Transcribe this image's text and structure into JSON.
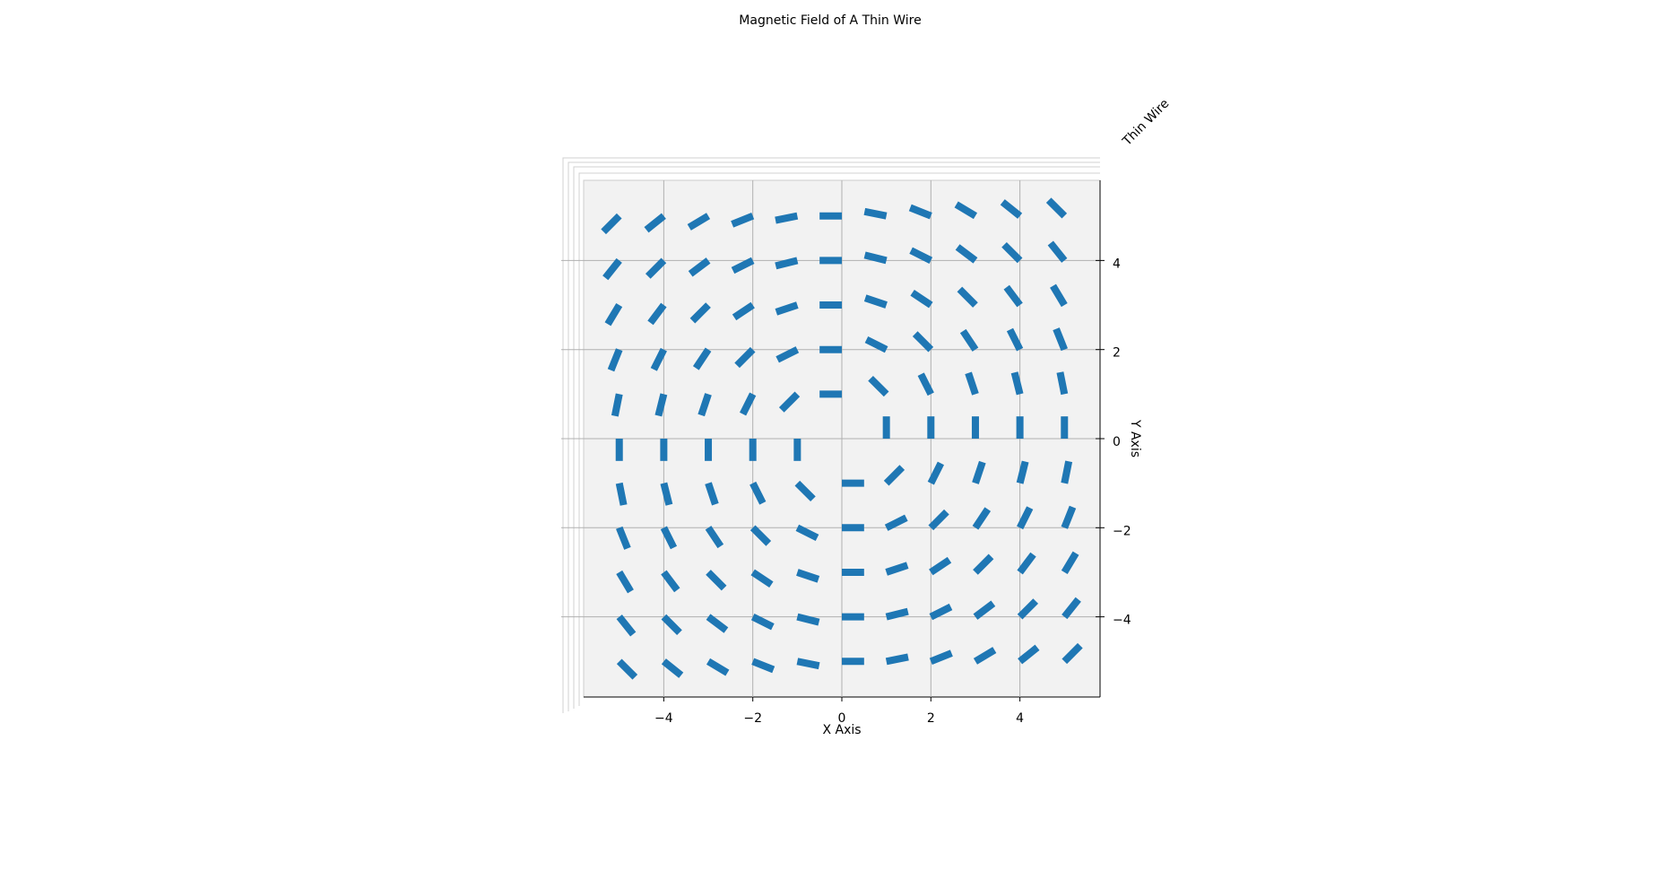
{
  "chart_data": {
    "type": "quiver",
    "title": "Magnetic Field of A Thin Wire",
    "x_label": "X Axis",
    "y_label": "Y Axis",
    "z_label": "Thin Wire",
    "color": "#1f77b4",
    "grid": true,
    "xlim": [
      -5.8,
      5.8
    ],
    "ylim": [
      -5.8,
      5.8
    ],
    "xticks": [
      {
        "value": -4,
        "label": "−4"
      },
      {
        "value": -2,
        "label": "−2"
      },
      0,
      2,
      4
    ],
    "yticks": [
      {
        "value": -4,
        "label": "−4"
      },
      {
        "value": -2,
        "label": "−2"
      },
      0,
      2,
      4
    ],
    "x": [
      -5,
      -4,
      -3,
      -2,
      -1,
      0,
      1,
      2,
      3,
      4,
      5
    ],
    "y": [
      5,
      4,
      3,
      2,
      1,
      0,
      -1,
      -2,
      -3,
      -4,
      -5
    ],
    "u": [
      [
        -0.354,
        -0.39,
        -0.429,
        -0.464,
        -0.49,
        -0.5,
        -0.49,
        -0.464,
        -0.429,
        -0.39,
        -0.354
      ],
      [
        -0.312,
        -0.354,
        -0.4,
        -0.447,
        -0.485,
        -0.5,
        -0.485,
        -0.447,
        -0.4,
        -0.354,
        -0.312
      ],
      [
        -0.257,
        -0.3,
        -0.354,
        -0.416,
        -0.474,
        -0.5,
        -0.474,
        -0.416,
        -0.354,
        -0.3,
        -0.257
      ],
      [
        -0.186,
        -0.224,
        -0.277,
        -0.354,
        -0.447,
        -0.5,
        -0.447,
        -0.354,
        -0.277,
        -0.224,
        -0.186
      ],
      [
        -0.098,
        -0.121,
        -0.158,
        -0.224,
        -0.354,
        -0.5,
        -0.354,
        -0.224,
        -0.158,
        -0.121,
        -0.098
      ],
      [
        0,
        0,
        0,
        0,
        0,
        0,
        0,
        0,
        0,
        0,
        0
      ],
      [
        0.098,
        0.121,
        0.158,
        0.224,
        0.354,
        0.5,
        0.354,
        0.224,
        0.158,
        0.121,
        0.098
      ],
      [
        0.186,
        0.224,
        0.277,
        0.354,
        0.447,
        0.5,
        0.447,
        0.354,
        0.277,
        0.224,
        0.186
      ],
      [
        0.257,
        0.3,
        0.354,
        0.416,
        0.474,
        0.5,
        0.474,
        0.416,
        0.354,
        0.3,
        0.257
      ],
      [
        0.312,
        0.354,
        0.4,
        0.447,
        0.485,
        0.5,
        0.485,
        0.447,
        0.4,
        0.354,
        0.312
      ],
      [
        0.354,
        0.39,
        0.429,
        0.464,
        0.49,
        0.5,
        0.49,
        0.464,
        0.429,
        0.39,
        0.354
      ]
    ],
    "v": [
      [
        -0.354,
        -0.312,
        -0.257,
        -0.186,
        -0.098,
        0,
        0.098,
        0.186,
        0.257,
        0.312,
        0.354
      ],
      [
        -0.39,
        -0.354,
        -0.3,
        -0.224,
        -0.121,
        0,
        0.121,
        0.224,
        0.3,
        0.354,
        0.39
      ],
      [
        -0.429,
        -0.4,
        -0.354,
        -0.277,
        -0.158,
        0,
        0.158,
        0.277,
        0.354,
        0.4,
        0.429
      ],
      [
        -0.464,
        -0.447,
        -0.416,
        -0.354,
        -0.224,
        0,
        0.224,
        0.354,
        0.416,
        0.447,
        0.464
      ],
      [
        -0.49,
        -0.485,
        -0.474,
        -0.447,
        -0.354,
        0,
        0.354,
        0.447,
        0.474,
        0.485,
        0.49
      ],
      [
        -0.5,
        -0.5,
        -0.5,
        -0.5,
        -0.5,
        0,
        0.5,
        0.5,
        0.5,
        0.5,
        0.5
      ],
      [
        -0.49,
        -0.485,
        -0.474,
        -0.447,
        -0.354,
        0,
        0.354,
        0.447,
        0.474,
        0.485,
        0.49
      ],
      [
        -0.464,
        -0.447,
        -0.416,
        -0.354,
        -0.224,
        0,
        0.224,
        0.354,
        0.416,
        0.447,
        0.464
      ],
      [
        -0.429,
        -0.4,
        -0.354,
        -0.277,
        -0.158,
        0,
        0.158,
        0.277,
        0.354,
        0.4,
        0.429
      ],
      [
        -0.39,
        -0.354,
        -0.3,
        -0.224,
        -0.121,
        0,
        0.121,
        0.224,
        0.3,
        0.354,
        0.39
      ],
      [
        -0.354,
        -0.312,
        -0.257,
        -0.186,
        -0.098,
        0,
        0.098,
        0.186,
        0.257,
        0.312,
        0.354
      ]
    ]
  }
}
